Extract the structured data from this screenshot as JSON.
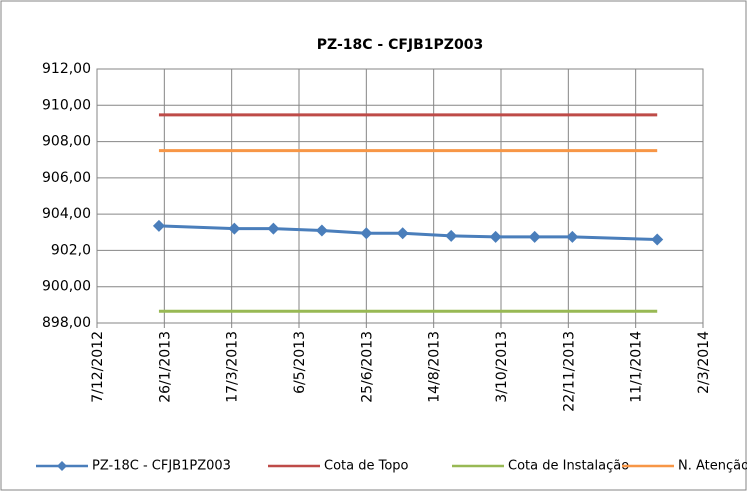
{
  "chart_data": {
    "type": "line",
    "title": "PZ-18C - CFJB1PZ003",
    "x": [
      "22/1/2013",
      "19/3/2013",
      "17/4/2013",
      "23/5/2013",
      "25/6/2013",
      "22/7/2013",
      "27/8/2013",
      "29/9/2013",
      "28/10/2013",
      "25/11/2013",
      "27/1/2014"
    ],
    "series": [
      {
        "name": "PZ-18C - CFJB1PZ003",
        "color": "#4a7ebb",
        "marker": "diamond",
        "values": [
          903.35,
          903.2,
          903.2,
          903.1,
          902.95,
          902.95,
          902.8,
          902.75,
          902.75,
          902.75,
          902.6
        ]
      },
      {
        "name": "Cota de Topo",
        "color": "#be4b48",
        "values": [
          909.47,
          909.47,
          909.47,
          909.47,
          909.47,
          909.47,
          909.47,
          909.47,
          909.47,
          909.47,
          909.47
        ]
      },
      {
        "name": "Cota de Instalação",
        "color": "#98b954",
        "values": [
          898.65,
          898.65,
          898.65,
          898.65,
          898.65,
          898.65,
          898.65,
          898.65,
          898.65,
          898.65,
          898.65
        ]
      },
      {
        "name": "N. Atenção",
        "color": "#f79646",
        "values": [
          907.5,
          907.5,
          907.5,
          907.5,
          907.5,
          907.5,
          907.5,
          907.5,
          907.5,
          907.5,
          907.5
        ]
      }
    ],
    "xlim": [
      "7/12/2012",
      "2/3/2014"
    ],
    "xticks": [
      "7/12/2012",
      "26/1/2013",
      "17/3/2013",
      "6/5/2013",
      "25/6/2013",
      "14/8/2013",
      "3/10/2013",
      "22/11/2013",
      "11/1/2014",
      "2/3/2014"
    ],
    "ylim": [
      898,
      912
    ],
    "yticks": [
      {
        "value": 898,
        "label": "898,00"
      },
      {
        "value": 900,
        "label": "900,00"
      },
      {
        "value": 902,
        "label": "902,0"
      },
      {
        "value": 904,
        "label": "904,00"
      },
      {
        "value": 906,
        "label": "906,00"
      },
      {
        "value": 908,
        "label": "908,00"
      },
      {
        "value": 910,
        "label": "910,00"
      },
      {
        "value": 912,
        "label": "912,00"
      }
    ],
    "grid": true,
    "legend": "bottom"
  }
}
